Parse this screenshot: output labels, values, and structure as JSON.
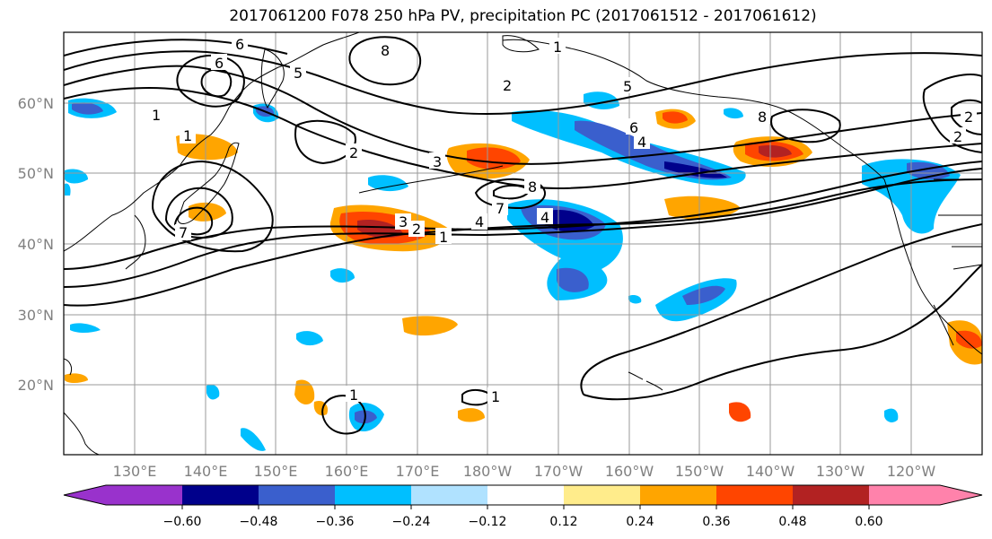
{
  "title": "2017061200 F078 250 hPa PV, precipitation PC (2017061512 - 2017061612)",
  "map": {
    "lat_labels": [
      "60°N",
      "50°N",
      "40°N",
      "30°N",
      "20°N"
    ],
    "lon_labels": [
      "130°E",
      "140°E",
      "150°E",
      "160°E",
      "170°E",
      "180°W",
      "170°W",
      "160°W",
      "150°W",
      "140°W",
      "130°W",
      "120°W"
    ],
    "land_color": "#ffffff",
    "contour_color": "#000000",
    "pv_contour_labels": [
      "6",
      "5",
      "2",
      "1",
      "8",
      "7",
      "4",
      "3",
      "2",
      "1",
      "2",
      "6",
      "4",
      "8",
      "3",
      "2",
      "1",
      "6",
      "5",
      "4",
      "7",
      "8",
      "2",
      "1",
      "1",
      "1"
    ]
  },
  "colorbar": {
    "colors": [
      "#9932cc",
      "#00008b",
      "#3a5fcd",
      "#00bfff",
      "#b0e2ff",
      "#ffffff",
      "#ffec8b",
      "#ffa500",
      "#ff4500",
      "#b22222",
      "#ff82ab"
    ],
    "tick_labels": [
      "−0.60",
      "−0.48",
      "−0.36",
      "−0.24",
      "−0.12",
      "0.12",
      "0.24",
      "0.36",
      "0.48",
      "0.60"
    ]
  }
}
